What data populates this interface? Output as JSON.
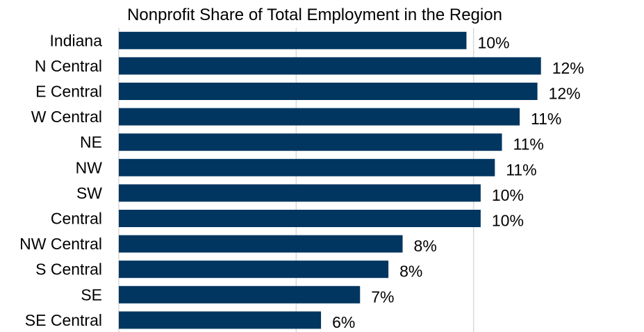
{
  "chart_data": {
    "type": "bar",
    "orientation": "horizontal",
    "title": "Nonprofit Share of Total Employment in the Region",
    "xlabel": "",
    "ylabel": "",
    "categories": [
      "Indiana",
      "N Central",
      "E Central",
      "W Central",
      "NE",
      "NW",
      "SW",
      "Central",
      "NW Central",
      "S Central",
      "SE",
      "SE Central"
    ],
    "values": [
      9.8,
      11.9,
      11.8,
      11.3,
      10.8,
      10.6,
      10.2,
      10.2,
      8.0,
      7.6,
      6.8,
      5.7
    ],
    "data_labels": [
      "10%",
      "12%",
      "12%",
      "11%",
      "11%",
      "11%",
      "10%",
      "10%",
      "8%",
      "8%",
      "7%",
      "6%"
    ],
    "xlim": [
      0,
      15
    ],
    "gridlines": [
      0,
      5,
      10,
      15
    ],
    "grid": true,
    "legend": "none",
    "bar_color": "#003660"
  }
}
